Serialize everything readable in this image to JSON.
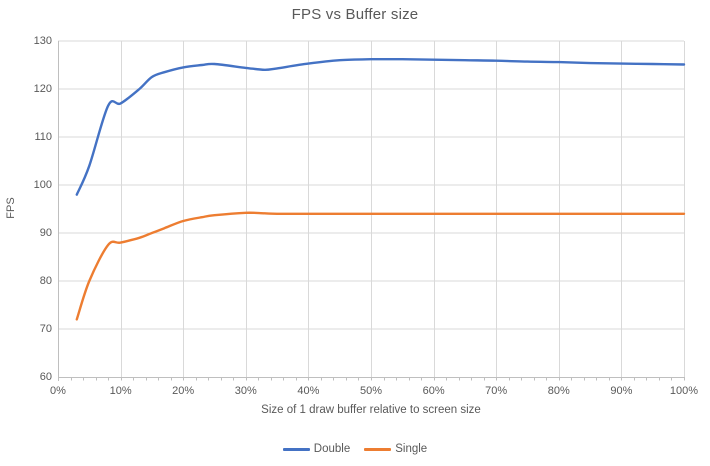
{
  "chart_data": {
    "type": "line",
    "title": "FPS vs Buffer size",
    "xlabel": "Size of 1 draw buffer relative to screen size",
    "ylabel": "FPS",
    "xlim": [
      0,
      100
    ],
    "ylim": [
      60,
      130
    ],
    "x_tick_step": 10,
    "x_minor_tick_step": 2,
    "y_tick_step": 10,
    "x_tick_labels": [
      "0%",
      "10%",
      "20%",
      "30%",
      "40%",
      "50%",
      "60%",
      "70%",
      "80%",
      "90%",
      "100%"
    ],
    "y_tick_labels": [
      "60",
      "70",
      "80",
      "90",
      "100",
      "110",
      "120",
      "130"
    ],
    "grid": true,
    "smooth": true,
    "legend_position": "bottom",
    "x": [
      3,
      5,
      8,
      10,
      13,
      15,
      17,
      20,
      23,
      25,
      30,
      33,
      35,
      40,
      45,
      50,
      55,
      60,
      65,
      70,
      75,
      80,
      85,
      90,
      95,
      100
    ],
    "series": [
      {
        "name": "Double",
        "color": "#4472C4",
        "values": [
          98,
          104,
          116.5,
          117,
          120,
          122.5,
          123.5,
          124.5,
          125,
          125.2,
          124.4,
          124,
          124.3,
          125.3,
          126,
          126.2,
          126.2,
          126.1,
          126,
          125.9,
          125.7,
          125.6,
          125.4,
          125.3,
          125.2,
          125.1
        ]
      },
      {
        "name": "Single",
        "color": "#ED7D31",
        "values": [
          72,
          80,
          87.5,
          88,
          89,
          90,
          91,
          92.5,
          93.3,
          93.7,
          94.2,
          94.1,
          94,
          94,
          94,
          94,
          94,
          94,
          94,
          94,
          94,
          94,
          94,
          94,
          94,
          94
        ]
      }
    ],
    "colors": {
      "gridline": "#D9D9D9",
      "axis": "#BFBFBF",
      "text": "#595959",
      "background": "#FFFFFF"
    }
  }
}
